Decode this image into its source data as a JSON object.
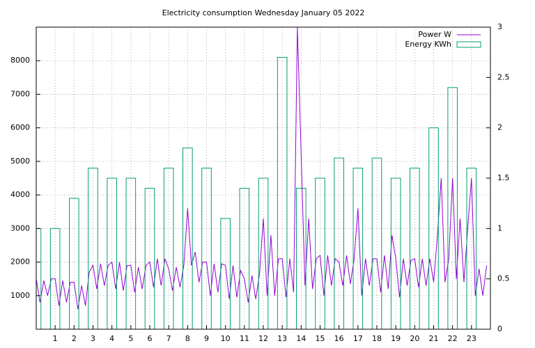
{
  "chart_data": {
    "type": "line",
    "title": "Electricity consumption Wednesday January 05 2022",
    "xlim": [
      0,
      24
    ],
    "xticks": [
      1,
      2,
      3,
      4,
      5,
      6,
      7,
      8,
      9,
      10,
      11,
      12,
      13,
      14,
      15,
      16,
      17,
      18,
      19,
      20,
      21,
      22,
      23
    ],
    "ylim": [
      0,
      9000
    ],
    "yticks": [
      1000,
      2000,
      3000,
      4000,
      5000,
      6000,
      7000,
      8000
    ],
    "y2lim": [
      0,
      3
    ],
    "y2ticks": [
      0,
      0.5,
      1,
      1.5,
      2,
      2.5,
      3
    ],
    "grid": true,
    "legend": "top-right",
    "series": [
      {
        "name": "Power W",
        "type": "line",
        "color": "#9400d3",
        "x": [
          0,
          0.2,
          0.4,
          0.6,
          0.8,
          1,
          1.2,
          1.4,
          1.6,
          1.8,
          2,
          2.2,
          2.4,
          2.6,
          2.8,
          3,
          3.2,
          3.4,
          3.6,
          3.8,
          4,
          4.2,
          4.4,
          4.6,
          4.8,
          5,
          5.2,
          5.4,
          5.6,
          5.8,
          6,
          6.2,
          6.4,
          6.6,
          6.8,
          7,
          7.2,
          7.4,
          7.6,
          7.8,
          8,
          8.2,
          8.4,
          8.6,
          8.8,
          9,
          9.2,
          9.4,
          9.6,
          9.8,
          10,
          10.2,
          10.4,
          10.6,
          10.8,
          11,
          11.2,
          11.4,
          11.6,
          11.8,
          12,
          12.2,
          12.4,
          12.6,
          12.8,
          13,
          13.2,
          13.4,
          13.6,
          13.8,
          14,
          14.2,
          14.4,
          14.6,
          14.8,
          15,
          15.2,
          15.4,
          15.6,
          15.8,
          16,
          16.2,
          16.4,
          16.6,
          16.8,
          17,
          17.2,
          17.4,
          17.6,
          17.8,
          18,
          18.2,
          18.4,
          18.6,
          18.8,
          19,
          19.2,
          19.4,
          19.6,
          19.8,
          20,
          20.2,
          20.4,
          20.6,
          20.8,
          21,
          21.2,
          21.4,
          21.6,
          21.8,
          22,
          22.2,
          22.4,
          22.6,
          22.8,
          23,
          23.2,
          23.4,
          23.6,
          23.8
        ],
        "values": [
          1500,
          800,
          1450,
          1000,
          1500,
          1500,
          700,
          1450,
          800,
          1400,
          1400,
          600,
          1300,
          700,
          1700,
          1900,
          1200,
          1950,
          1300,
          1900,
          2000,
          1200,
          2000,
          1150,
          1900,
          1900,
          1100,
          1850,
          1200,
          1900,
          2000,
          1250,
          2100,
          1300,
          2100,
          1800,
          1150,
          1850,
          1250,
          1900,
          3600,
          1900,
          2300,
          1400,
          2000,
          2000,
          1000,
          1950,
          1100,
          1950,
          1900,
          900,
          1900,
          950,
          1750,
          1500,
          800,
          1600,
          900,
          1650,
          3300,
          1000,
          2800,
          1000,
          2100,
          2100,
          950,
          2100,
          1100,
          9000,
          5200,
          1300,
          3300,
          1200,
          2100,
          2200,
          1000,
          2200,
          1300,
          2100,
          2000,
          1300,
          2200,
          1350,
          2100,
          3600,
          1000,
          2100,
          1300,
          2100,
          2100,
          1100,
          2200,
          1200,
          2800,
          2100,
          950,
          2100,
          1300,
          2050,
          2100,
          1250,
          2100,
          1300,
          2100,
          1400,
          2800,
          4500,
          1400,
          2100,
          4500,
          1500,
          3300,
          1400,
          3000,
          4500,
          1000,
          1800,
          1000,
          1900
        ]
      },
      {
        "name": "Energy KWh",
        "type": "boxes",
        "axis": "y2",
        "color": "#009e73",
        "x": [
          0,
          1,
          2,
          3,
          4,
          5,
          6,
          7,
          8,
          9,
          10,
          11,
          12,
          13,
          14,
          15,
          16,
          17,
          18,
          19,
          20,
          21,
          22,
          23
        ],
        "values": [
          1.0,
          1.0,
          1.3,
          1.6,
          1.5,
          1.5,
          1.4,
          1.6,
          1.8,
          1.6,
          1.1,
          1.4,
          1.5,
          2.7,
          1.4,
          1.5,
          1.7,
          1.6,
          1.7,
          1.5,
          1.6,
          2.0,
          2.4,
          1.6
        ]
      }
    ]
  }
}
